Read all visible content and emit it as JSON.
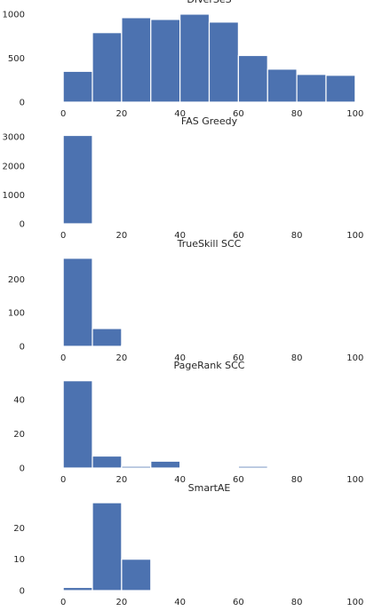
{
  "colors": {
    "bar": "#4c72b0",
    "text": "#262626",
    "background": "#ffffff"
  },
  "chart_data": [
    {
      "type": "bar",
      "title": "DiVerSeS",
      "bin_edges": [
        0,
        10,
        20,
        30,
        40,
        50,
        60,
        70,
        80,
        90,
        100
      ],
      "values": [
        350,
        790,
        960,
        940,
        1000,
        910,
        530,
        375,
        315,
        305
      ],
      "xlim": [
        -4,
        104
      ],
      "ylim": [
        0,
        1070
      ],
      "xticks": [
        0,
        20,
        40,
        60,
        80,
        100
      ],
      "yticks": [
        0,
        500,
        1000
      ],
      "grid": false
    },
    {
      "type": "bar",
      "title": "FAS Greedy",
      "bin_edges": [
        0,
        10,
        20,
        30,
        40,
        50,
        60,
        70,
        80,
        90,
        100
      ],
      "values": [
        3050,
        0,
        0,
        0,
        0,
        0,
        0,
        0,
        0,
        0
      ],
      "xlim": [
        -4,
        104
      ],
      "ylim": [
        0,
        3250
      ],
      "xticks": [
        0,
        20,
        40,
        60,
        80,
        100
      ],
      "yticks": [
        0,
        1000,
        2000,
        3000
      ],
      "grid": false
    },
    {
      "type": "bar",
      "title": "TrueSkill SCC",
      "bin_edges": [
        0,
        10,
        20,
        30,
        40,
        50,
        60,
        70,
        80,
        90,
        100
      ],
      "values": [
        262,
        53,
        3,
        0,
        0,
        0,
        0,
        0,
        0,
        0
      ],
      "xlim": [
        -4,
        104
      ],
      "ylim": [
        0,
        280
      ],
      "xticks": [
        0,
        20,
        40,
        60,
        80,
        100
      ],
      "yticks": [
        0,
        100,
        200
      ],
      "grid": false
    },
    {
      "type": "bar",
      "title": "PageRank SCC",
      "bin_edges": [
        0,
        10,
        20,
        30,
        40,
        50,
        60,
        70,
        80,
        90,
        100
      ],
      "values": [
        51,
        7,
        1,
        4,
        0,
        0,
        1,
        0,
        0,
        0
      ],
      "xlim": [
        -4,
        104
      ],
      "ylim": [
        0,
        55
      ],
      "xticks": [
        0,
        20,
        40,
        60,
        80,
        100
      ],
      "yticks": [
        0,
        20,
        40
      ],
      "grid": false
    },
    {
      "type": "bar",
      "title": "SmartAE",
      "bin_edges": [
        0,
        10,
        20,
        30,
        40,
        50,
        60,
        70,
        80,
        90,
        100
      ],
      "values": [
        1,
        28,
        10,
        0,
        0,
        0,
        0,
        0,
        0,
        0
      ],
      "xlim": [
        -4,
        104
      ],
      "ylim": [
        0,
        30
      ],
      "xticks": [
        0,
        20,
        40,
        60,
        80,
        100
      ],
      "yticks": [
        0,
        10,
        20
      ],
      "grid": false
    }
  ]
}
